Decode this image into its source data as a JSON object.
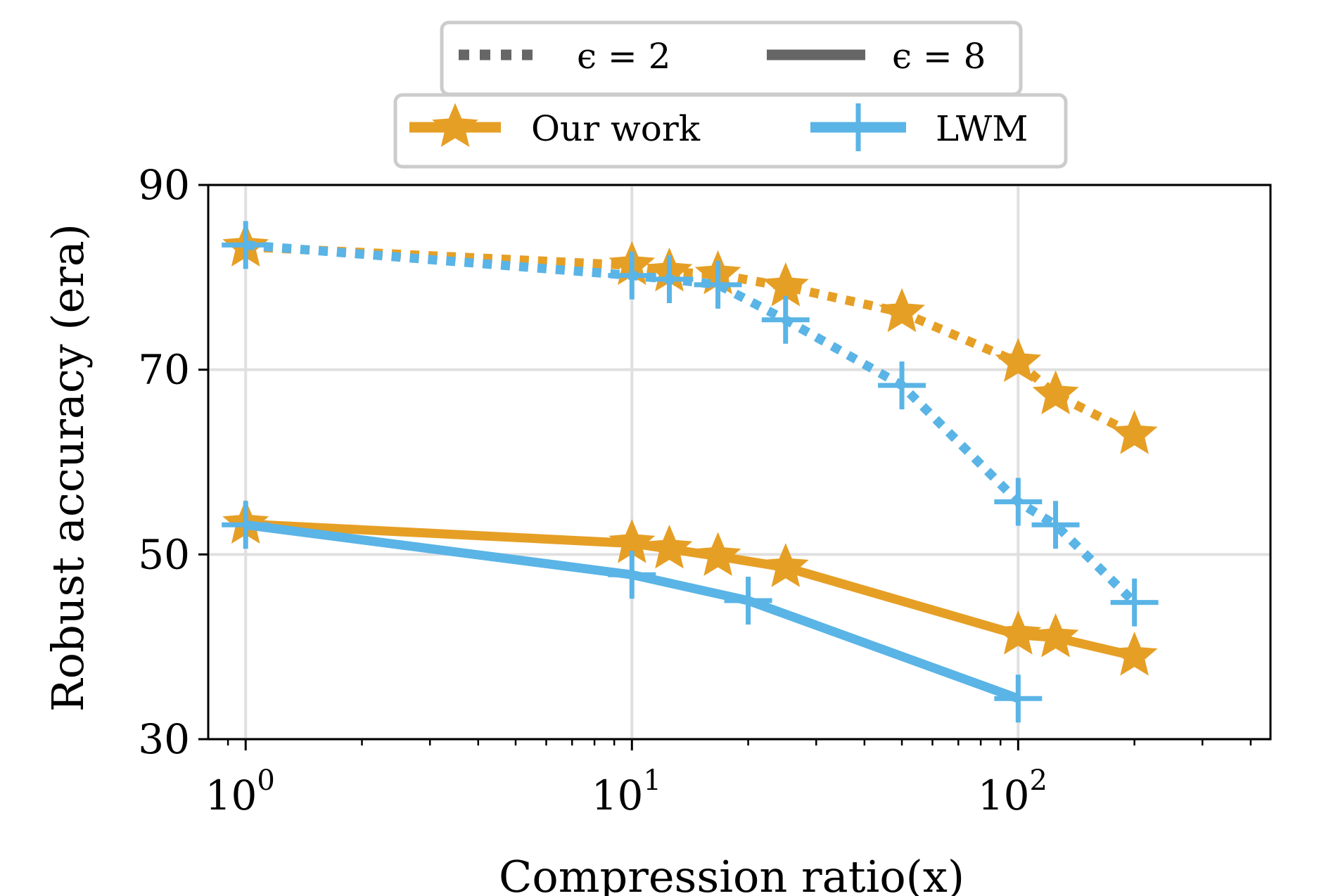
{
  "chart_data": {
    "type": "line",
    "xlabel": "Compression ratio(x)",
    "ylabel": "Robust accuracy (era)",
    "xscale": "log",
    "xlim": [
      0.8,
      450
    ],
    "ylim": [
      30,
      90
    ],
    "yticks": [
      "30",
      "50",
      "70",
      "90"
    ],
    "xticks": [
      {
        "base": "10",
        "exp": "0",
        "value": 1
      },
      {
        "base": "10",
        "exp": "1",
        "value": 10
      },
      {
        "base": "10",
        "exp": "2",
        "value": 100
      }
    ],
    "grid": true,
    "legend_style": {
      "placement": "top-center",
      "entries": [
        {
          "label": "ϵ = 2",
          "linestyle": "dotted"
        },
        {
          "label": "ϵ = 8",
          "linestyle": "solid"
        }
      ]
    },
    "legend_methods": {
      "placement": "top-center",
      "entries": [
        {
          "label": "Our work",
          "color": "#e69f25",
          "marker": "star"
        },
        {
          "label": "LWM",
          "color": "#5ab4e6",
          "marker": "plus"
        }
      ]
    },
    "series": [
      {
        "method": "Our work",
        "epsilon": "2",
        "linestyle": "dotted",
        "color": "#e69f25",
        "marker": "star",
        "x": [
          1,
          10,
          12.5,
          16.7,
          25,
          50,
          100,
          125,
          200
        ],
        "y": [
          83.3,
          81.3,
          80.6,
          80.3,
          79.0,
          76.2,
          70.8,
          67.3,
          63.0
        ]
      },
      {
        "method": "LWM",
        "epsilon": "2",
        "linestyle": "dotted",
        "color": "#5ab4e6",
        "marker": "plus",
        "x": [
          1,
          10,
          12.5,
          16.7,
          25,
          50,
          100,
          125,
          200
        ],
        "y": [
          83.5,
          80.2,
          79.8,
          79.2,
          75.4,
          68.3,
          55.7,
          53.2,
          44.8
        ]
      },
      {
        "method": "Our work",
        "epsilon": "8",
        "linestyle": "solid",
        "color": "#e69f25",
        "marker": "star",
        "x": [
          1,
          10,
          12.5,
          16.7,
          25,
          100,
          125,
          200
        ],
        "y": [
          53.3,
          51.2,
          50.6,
          49.8,
          48.6,
          41.3,
          41.0,
          39.0
        ]
      },
      {
        "method": "LWM",
        "epsilon": "8",
        "linestyle": "solid",
        "color": "#5ab4e6",
        "marker": "plus",
        "x": [
          1,
          10,
          20,
          100
        ],
        "y": [
          53.2,
          47.8,
          45.0,
          34.4
        ]
      }
    ]
  }
}
